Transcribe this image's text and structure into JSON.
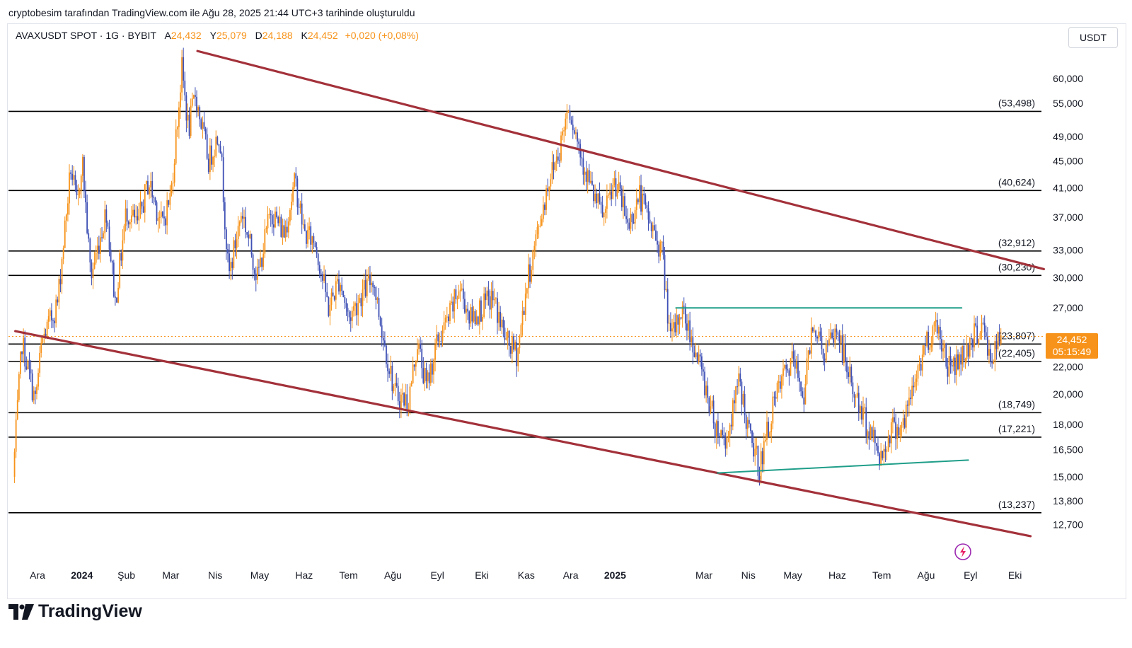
{
  "caption": "cryptobesim tarafından TradingView.com ile Ağu 28, 2025 21:44 UTC+3 tarihinde oluşturuldu",
  "legend": {
    "symbol": "AVAXUSDT SPOT · 1G · BYBIT",
    "open_label": "A",
    "open": "24,432",
    "high_label": "Y",
    "high": "25,079",
    "low_label": "D",
    "low": "24,188",
    "close_label": "K",
    "close": "24,452",
    "change": "+0,020 (+0,08%)"
  },
  "currency": "USDT",
  "current_price": {
    "value": "24,452",
    "countdown": "05:15:49"
  },
  "brand": "TradingView",
  "colors": {
    "up": "#f7931a",
    "down": "#3f51b5",
    "channel": "#a3313a",
    "range": "#1f9e89",
    "level": "#000000",
    "accent": "#f7931a"
  },
  "chart_data": {
    "type": "candlestick",
    "title": "AVAXUSDT SPOT · 1G · BYBIT",
    "y_scale": "log",
    "ylim": [
      11.0,
      68.0
    ],
    "y_ticks": [
      {
        "value": 60,
        "label": "60,000"
      },
      {
        "value": 55,
        "label": "55,000"
      },
      {
        "value": 49,
        "label": "49,000"
      },
      {
        "value": 45,
        "label": "45,000"
      },
      {
        "value": 41,
        "label": "41,000"
      },
      {
        "value": 37,
        "label": "37,000"
      },
      {
        "value": 33,
        "label": "33,000"
      },
      {
        "value": 30,
        "label": "30,000"
      },
      {
        "value": 27,
        "label": "27,000"
      },
      {
        "value": 22,
        "label": "22,000"
      },
      {
        "value": 20,
        "label": "20,000"
      },
      {
        "value": 18,
        "label": "18,000"
      },
      {
        "value": 16.5,
        "label": "16,500"
      },
      {
        "value": 15,
        "label": "15,000"
      },
      {
        "value": 13.8,
        "label": "13,800"
      },
      {
        "value": 12.7,
        "label": "12,700"
      }
    ],
    "x_ticks": [
      {
        "label": "Ara",
        "bold": false
      },
      {
        "label": "2024",
        "bold": true
      },
      {
        "label": "Şub",
        "bold": false
      },
      {
        "label": "Mar",
        "bold": false
      },
      {
        "label": "Nis",
        "bold": false
      },
      {
        "label": "May",
        "bold": false
      },
      {
        "label": "Haz",
        "bold": false
      },
      {
        "label": "Tem",
        "bold": false
      },
      {
        "label": "Ağu",
        "bold": false
      },
      {
        "label": "Eyl",
        "bold": false
      },
      {
        "label": "Eki",
        "bold": false
      },
      {
        "label": "Kas",
        "bold": false
      },
      {
        "label": "Ara",
        "bold": false
      },
      {
        "label": "2025",
        "bold": true
      },
      {
        "label": "Mar",
        "bold": false
      },
      {
        "label": "Nis",
        "bold": false
      },
      {
        "label": "May",
        "bold": false
      },
      {
        "label": "Haz",
        "bold": false
      },
      {
        "label": "Tem",
        "bold": false
      },
      {
        "label": "Ağu",
        "bold": false
      },
      {
        "label": "Eyl",
        "bold": false
      },
      {
        "label": "Eki",
        "bold": false
      }
    ],
    "x_months_index": [
      0,
      1,
      2,
      3,
      4,
      5,
      6,
      7,
      8,
      9,
      10,
      11,
      12,
      13,
      15,
      16,
      17,
      18,
      19,
      20,
      21,
      22
    ],
    "x_span_months": [
      -0.55,
      22.7
    ],
    "horizontal_levels": [
      {
        "value": 53.498,
        "label": "(53,498)"
      },
      {
        "value": 40.624,
        "label": "(40,624)"
      },
      {
        "value": 32.912,
        "label": "(32,912)"
      },
      {
        "value": 30.23,
        "label": "(30,230)"
      },
      {
        "value": 23.807,
        "label": "(23,807)"
      },
      {
        "value": 22.405,
        "label": "(22,405)"
      },
      {
        "value": 18.749,
        "label": "(18,749)"
      },
      {
        "value": 17.221,
        "label": "(17,221)"
      },
      {
        "value": 13.237,
        "label": "(13,237)"
      }
    ],
    "current_value": 24.452,
    "trendlines": [
      {
        "name": "channel-upper",
        "color": "channel",
        "points": [
          [
            3.6,
            66.0
          ],
          [
            22.65,
            30.9
          ]
        ]
      },
      {
        "name": "channel-lower",
        "color": "channel",
        "points": [
          [
            -0.5,
            24.9
          ],
          [
            22.35,
            12.2
          ]
        ]
      },
      {
        "name": "range-top",
        "color": "range",
        "points": [
          [
            14.37,
            27.0
          ],
          [
            20.8,
            27.0
          ]
        ]
      },
      {
        "name": "range-bottom",
        "color": "range",
        "points": [
          [
            15.3,
            15.2
          ],
          [
            20.95,
            15.9
          ]
        ]
      }
    ],
    "price_path": [
      [
        -0.55,
        15.0
      ],
      [
        -0.35,
        24.0
      ],
      [
        -0.05,
        19.5
      ],
      [
        0.1,
        24.0
      ],
      [
        0.45,
        27.5
      ],
      [
        0.75,
        44.0
      ],
      [
        0.9,
        38.0
      ],
      [
        1.0,
        46.0
      ],
      [
        1.2,
        30.0
      ],
      [
        1.55,
        38.0
      ],
      [
        1.75,
        27.5
      ],
      [
        2.0,
        38.0
      ],
      [
        2.25,
        36.0
      ],
      [
        2.5,
        42.0
      ],
      [
        2.8,
        36.0
      ],
      [
        3.0,
        40.0
      ],
      [
        3.25,
        62.0
      ],
      [
        3.4,
        50.0
      ],
      [
        3.55,
        57.0
      ],
      [
        3.85,
        45.0
      ],
      [
        4.1,
        50.0
      ],
      [
        4.3,
        30.0
      ],
      [
        4.6,
        38.0
      ],
      [
        4.95,
        30.0
      ],
      [
        5.25,
        38.0
      ],
      [
        5.55,
        35.0
      ],
      [
        5.8,
        42.0
      ],
      [
        6.0,
        35.0
      ],
      [
        6.25,
        34.0
      ],
      [
        6.55,
        27.0
      ],
      [
        6.8,
        30.0
      ],
      [
        7.0,
        26.0
      ],
      [
        7.25,
        28.0
      ],
      [
        7.55,
        30.0
      ],
      [
        7.8,
        24.0
      ],
      [
        8.05,
        20.0
      ],
      [
        8.35,
        19.5
      ],
      [
        8.55,
        24.0
      ],
      [
        8.75,
        20.5
      ],
      [
        9.0,
        24.0
      ],
      [
        9.25,
        26.0
      ],
      [
        9.5,
        29.0
      ],
      [
        9.75,
        26.0
      ],
      [
        10.0,
        27.0
      ],
      [
        10.25,
        28.0
      ],
      [
        10.55,
        24.0
      ],
      [
        10.8,
        23.0
      ],
      [
        11.0,
        29.0
      ],
      [
        11.25,
        35.0
      ],
      [
        11.5,
        42.0
      ],
      [
        11.75,
        47.0
      ],
      [
        11.95,
        55.0
      ],
      [
        12.2,
        47.0
      ],
      [
        12.5,
        40.0
      ],
      [
        12.75,
        37.0
      ],
      [
        13.0,
        42.0
      ],
      [
        13.3,
        36.0
      ],
      [
        13.55,
        40.0
      ],
      [
        13.8,
        36.0
      ],
      [
        14.05,
        33.0
      ],
      [
        14.25,
        24.0
      ],
      [
        14.5,
        27.0
      ],
      [
        14.75,
        24.0
      ],
      [
        15.0,
        21.0
      ],
      [
        15.25,
        18.0
      ],
      [
        15.5,
        17.0
      ],
      [
        15.8,
        21.0
      ],
      [
        16.0,
        17.5
      ],
      [
        16.25,
        15.5
      ],
      [
        16.5,
        18.5
      ],
      [
        16.75,
        21.0
      ],
      [
        17.0,
        22.5
      ],
      [
        17.25,
        20.0
      ],
      [
        17.45,
        26.0
      ],
      [
        17.7,
        23.0
      ],
      [
        18.0,
        25.0
      ],
      [
        18.25,
        21.5
      ],
      [
        18.5,
        19.0
      ],
      [
        18.75,
        17.5
      ],
      [
        19.0,
        16.0
      ],
      [
        19.2,
        17.8
      ],
      [
        19.5,
        18.0
      ],
      [
        19.75,
        21.0
      ],
      [
        20.0,
        24.0
      ],
      [
        20.25,
        25.5
      ],
      [
        20.5,
        22.0
      ],
      [
        20.75,
        22.5
      ],
      [
        21.0,
        24.0
      ],
      [
        21.25,
        25.5
      ],
      [
        21.45,
        22.5
      ],
      [
        21.7,
        24.45
      ]
    ],
    "annotations": []
  }
}
